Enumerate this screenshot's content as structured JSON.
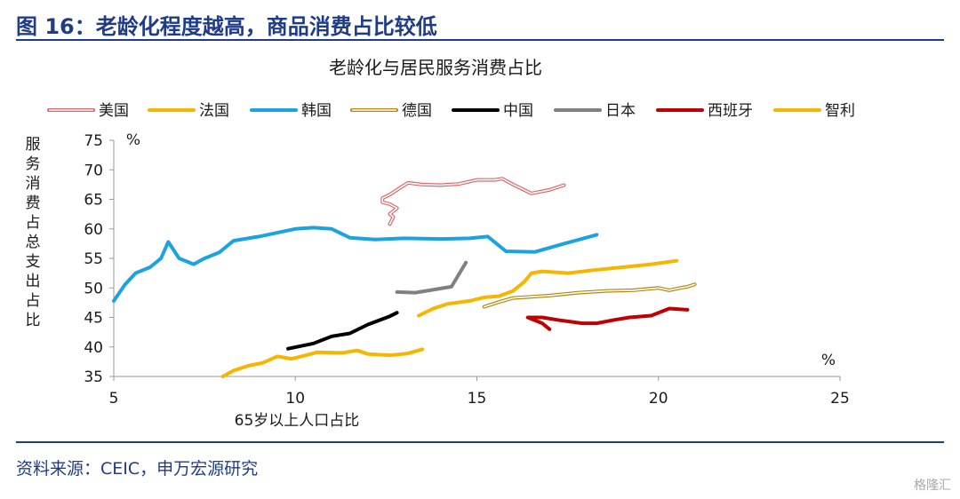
{
  "header": {
    "figure_title": "图 16：老龄化程度越高，商品消费占比较低"
  },
  "footer": {
    "source": "资料来源：CEIC，申万宏源研究",
    "watermark": "格隆汇"
  },
  "chart_data": {
    "type": "line",
    "title": "老龄化与居民服务消费占比",
    "xlabel": "65岁以上人口占比",
    "ylabel": "服务消费占总支出占比",
    "x_unit": "%",
    "y_unit": "%",
    "xlim": [
      5,
      25
    ],
    "ylim": [
      35,
      75
    ],
    "xticks": [
      5,
      10,
      15,
      20,
      25
    ],
    "yticks": [
      35,
      40,
      45,
      50,
      55,
      60,
      65,
      70,
      75
    ],
    "grid": false,
    "legend_position": "top",
    "series": [
      {
        "name": "美国",
        "color": "#e06666",
        "style": "double",
        "points": [
          [
            12.6,
            60.8
          ],
          [
            12.7,
            62.0
          ],
          [
            12.6,
            62.5
          ],
          [
            12.8,
            63.5
          ],
          [
            12.6,
            64.2
          ],
          [
            12.4,
            64.5
          ],
          [
            12.4,
            65.2
          ],
          [
            12.6,
            65.8
          ],
          [
            12.9,
            67.0
          ],
          [
            13.1,
            67.8
          ],
          [
            13.5,
            67.5
          ],
          [
            14.0,
            67.4
          ],
          [
            14.5,
            67.6
          ],
          [
            15.0,
            68.3
          ],
          [
            15.5,
            68.3
          ],
          [
            15.7,
            68.5
          ],
          [
            16.0,
            67.5
          ],
          [
            16.5,
            66.0
          ],
          [
            17.0,
            66.6
          ],
          [
            17.4,
            67.4
          ]
        ]
      },
      {
        "name": "法国",
        "color": "#f7b500",
        "style": "solid",
        "points": [
          [
            13.4,
            45.3
          ],
          [
            13.8,
            46.5
          ],
          [
            14.2,
            47.3
          ],
          [
            14.8,
            47.8
          ],
          [
            15.2,
            48.4
          ],
          [
            15.6,
            48.6
          ],
          [
            16.0,
            49.5
          ],
          [
            16.3,
            51.0
          ],
          [
            16.5,
            52.5
          ],
          [
            16.8,
            52.8
          ],
          [
            17.5,
            52.5
          ],
          [
            18.2,
            53.0
          ],
          [
            19.0,
            53.5
          ],
          [
            19.8,
            54.0
          ],
          [
            20.5,
            54.6
          ]
        ]
      },
      {
        "name": "韩国",
        "color": "#1aa3e0",
        "style": "solid",
        "points": [
          [
            5.0,
            47.8
          ],
          [
            5.3,
            50.5
          ],
          [
            5.6,
            52.5
          ],
          [
            6.0,
            53.5
          ],
          [
            6.3,
            55.0
          ],
          [
            6.5,
            57.8
          ],
          [
            6.8,
            55.0
          ],
          [
            7.2,
            54.0
          ],
          [
            7.5,
            55.0
          ],
          [
            7.9,
            56.0
          ],
          [
            8.3,
            58.0
          ],
          [
            9.0,
            58.7
          ],
          [
            10.0,
            60.0
          ],
          [
            10.5,
            60.2
          ],
          [
            11.0,
            60.0
          ],
          [
            11.5,
            58.5
          ],
          [
            12.2,
            58.2
          ],
          [
            13.0,
            58.4
          ],
          [
            14.0,
            58.3
          ],
          [
            14.8,
            58.4
          ],
          [
            15.3,
            58.7
          ],
          [
            15.8,
            56.2
          ],
          [
            16.6,
            56.1
          ],
          [
            17.4,
            57.5
          ],
          [
            18.3,
            59.0
          ]
        ]
      },
      {
        "name": "德国",
        "color": "#b8860b",
        "style": "double",
        "points": [
          [
            15.2,
            46.8
          ],
          [
            15.6,
            47.6
          ],
          [
            16.0,
            48.3
          ],
          [
            16.5,
            48.5
          ],
          [
            17.0,
            48.7
          ],
          [
            17.8,
            49.2
          ],
          [
            18.6,
            49.5
          ],
          [
            19.3,
            49.6
          ],
          [
            20.0,
            50.0
          ],
          [
            20.3,
            49.6
          ],
          [
            20.6,
            50.0
          ],
          [
            20.8,
            50.2
          ],
          [
            21.0,
            50.6
          ]
        ]
      },
      {
        "name": "中国",
        "color": "#000000",
        "style": "solid",
        "points": [
          [
            9.8,
            39.7
          ],
          [
            10.5,
            40.6
          ],
          [
            11.0,
            41.8
          ],
          [
            11.5,
            42.3
          ],
          [
            12.0,
            43.8
          ],
          [
            12.6,
            45.2
          ],
          [
            12.8,
            45.8
          ]
        ]
      },
      {
        "name": "日本",
        "color": "#808080",
        "style": "solid",
        "points": [
          [
            12.8,
            49.3
          ],
          [
            13.3,
            49.2
          ],
          [
            13.9,
            49.8
          ],
          [
            14.3,
            50.2
          ],
          [
            14.7,
            54.3
          ]
        ]
      },
      {
        "name": "西班牙",
        "color": "#c00000",
        "style": "solid",
        "points": [
          [
            17.0,
            43.0
          ],
          [
            16.8,
            44.0
          ],
          [
            16.4,
            45.0
          ],
          [
            16.8,
            45.0
          ],
          [
            17.3,
            44.5
          ],
          [
            17.9,
            44.0
          ],
          [
            18.3,
            44.0
          ],
          [
            18.8,
            44.6
          ],
          [
            19.2,
            45.0
          ],
          [
            19.8,
            45.3
          ],
          [
            20.3,
            46.5
          ],
          [
            20.8,
            46.3
          ]
        ]
      },
      {
        "name": "智利",
        "color": "#f7b500",
        "style": "solid",
        "points": [
          [
            8.0,
            35.0
          ],
          [
            8.3,
            36.0
          ],
          [
            8.7,
            36.8
          ],
          [
            9.1,
            37.3
          ],
          [
            9.5,
            38.4
          ],
          [
            9.9,
            38.0
          ],
          [
            10.3,
            38.6
          ],
          [
            10.6,
            39.1
          ],
          [
            11.3,
            39.0
          ],
          [
            11.7,
            39.4
          ],
          [
            12.0,
            38.8
          ],
          [
            12.6,
            38.6
          ],
          [
            13.1,
            38.9
          ],
          [
            13.5,
            39.6
          ]
        ]
      }
    ]
  }
}
